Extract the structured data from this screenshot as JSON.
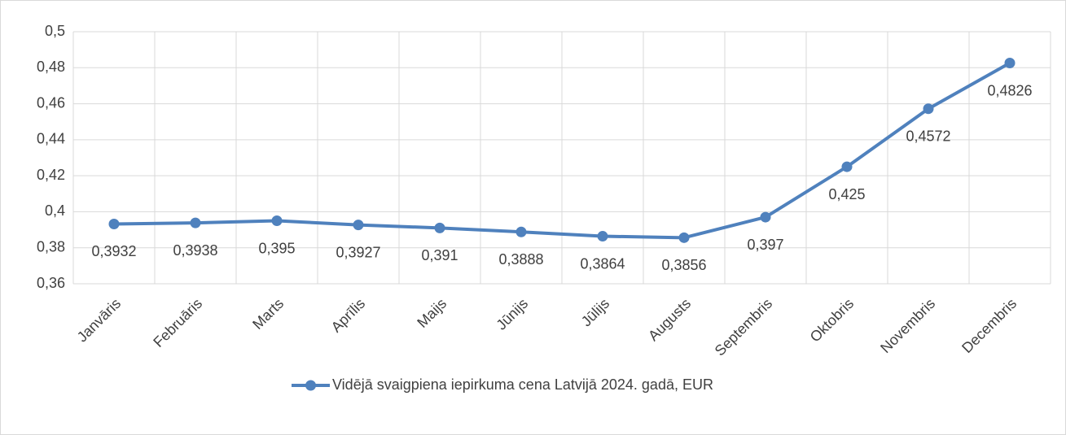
{
  "chart_data": {
    "type": "line",
    "categories": [
      "Janvāris",
      "Februāris",
      "Marts",
      "Aprīlis",
      "Maijs",
      "Jūnijs",
      "Jūlijs",
      "Augusts",
      "Septembris",
      "Oktobris",
      "Novembris",
      "Decembris"
    ],
    "series": [
      {
        "name": "Vidējā svaigpiena iepirkuma cena Latvijā 2024. gadā, EUR",
        "color": "#4f81bd",
        "values": [
          0.3932,
          0.3938,
          0.395,
          0.3927,
          0.391,
          0.3888,
          0.3864,
          0.3856,
          0.397,
          0.425,
          0.4572,
          0.4826
        ],
        "value_labels": [
          "0,3932",
          "0,3938",
          "0,395",
          "0,3927",
          "0,391",
          "0,3888",
          "0,3864",
          "0,3856",
          "0,397",
          "0,425",
          "0,4572",
          "0,4826"
        ]
      }
    ],
    "ylim": [
      0.36,
      0.5
    ],
    "yticks": [
      {
        "value": 0.36,
        "label": "0,36"
      },
      {
        "value": 0.38,
        "label": "0,38"
      },
      {
        "value": 0.4,
        "label": "0,4"
      },
      {
        "value": 0.42,
        "label": "0,42"
      },
      {
        "value": 0.44,
        "label": "0,44"
      },
      {
        "value": 0.46,
        "label": "0,46"
      },
      {
        "value": 0.48,
        "label": "0,48"
      },
      {
        "value": 0.5,
        "label": "0,5"
      }
    ],
    "grid": true,
    "legend": "bottom"
  }
}
